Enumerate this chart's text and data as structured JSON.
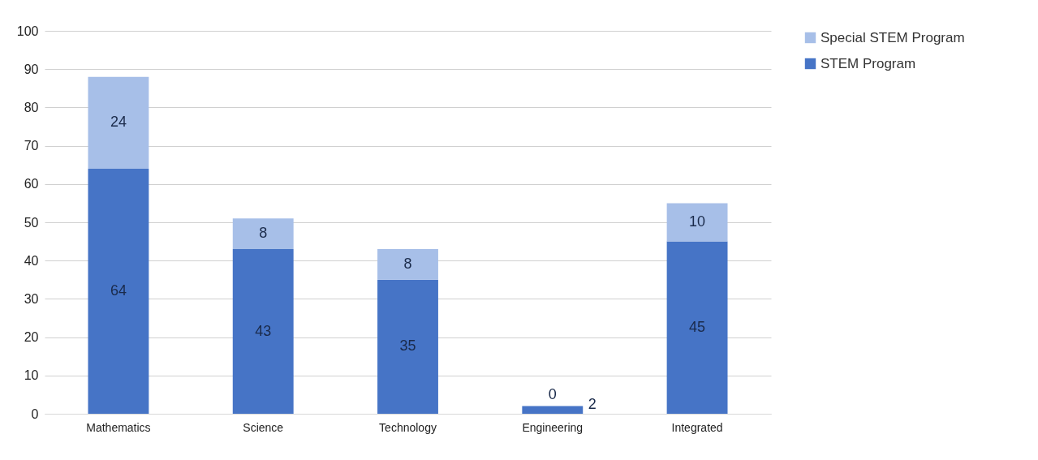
{
  "chart_data": {
    "type": "bar",
    "stacked": true,
    "categories": [
      "Mathematics",
      "Science",
      "Technology",
      "Engineering",
      "Integrated"
    ],
    "series": [
      {
        "name": "STEM Program",
        "color": "#4674c6",
        "values": [
          64,
          43,
          35,
          2,
          45
        ]
      },
      {
        "name": "Special STEM Program",
        "color": "#a7bfe8",
        "values": [
          24,
          8,
          8,
          0,
          10
        ]
      }
    ],
    "ylim": [
      0,
      100
    ],
    "yticks": [
      0,
      10,
      20,
      30,
      40,
      50,
      60,
      70,
      80,
      90,
      100
    ],
    "grid": "y",
    "legend": "right",
    "data_labels": true
  }
}
